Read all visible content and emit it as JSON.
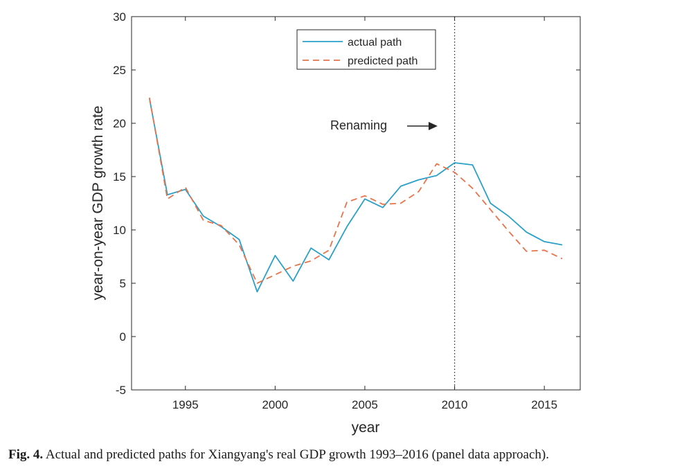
{
  "chart_data": {
    "type": "line",
    "title": "",
    "xlabel": "year",
    "ylabel": "year-on-year GDP growth rate",
    "xlim": [
      1992,
      2017
    ],
    "ylim": [
      -5,
      30
    ],
    "xticks": [
      1995,
      2000,
      2005,
      2010,
      2015
    ],
    "yticks": [
      -5,
      0,
      5,
      10,
      15,
      20,
      25,
      30
    ],
    "grid": false,
    "legend_position": "top-center",
    "x": [
      1993,
      1994,
      1995,
      1996,
      1997,
      1998,
      1999,
      2000,
      2001,
      2002,
      2003,
      2004,
      2005,
      2006,
      2007,
      2008,
      2009,
      2010,
      2011,
      2012,
      2013,
      2014,
      2015,
      2016
    ],
    "series": [
      {
        "name": "actual path",
        "color": "#2aa0c9",
        "style": "solid",
        "values": [
          22.3,
          13.3,
          13.8,
          11.3,
          10.3,
          9.1,
          4.2,
          7.6,
          5.2,
          8.3,
          7.2,
          10.3,
          12.9,
          12.1,
          14.1,
          14.7,
          15.1,
          16.3,
          16.1,
          12.5,
          11.3,
          9.8,
          8.9,
          8.6
        ]
      },
      {
        "name": "predicted path",
        "color": "#e8734a",
        "style": "dashed",
        "values": [
          22.4,
          12.9,
          14.0,
          10.9,
          10.4,
          8.6,
          5.0,
          5.8,
          6.6,
          7.1,
          8.1,
          12.6,
          13.2,
          12.4,
          12.5,
          13.6,
          16.2,
          15.4,
          13.9,
          11.9,
          9.9,
          8.0,
          8.1,
          7.3
        ]
      }
    ],
    "vline": {
      "x": 2010,
      "style": "dotted"
    },
    "annotation": {
      "text": "Renaming",
      "x": 2006.7,
      "y": 19.7
    }
  },
  "caption": {
    "label": "Fig. 4.",
    "text": " Actual and predicted paths for Xiangyang's real GDP growth 1993–2016 (panel data approach)."
  }
}
